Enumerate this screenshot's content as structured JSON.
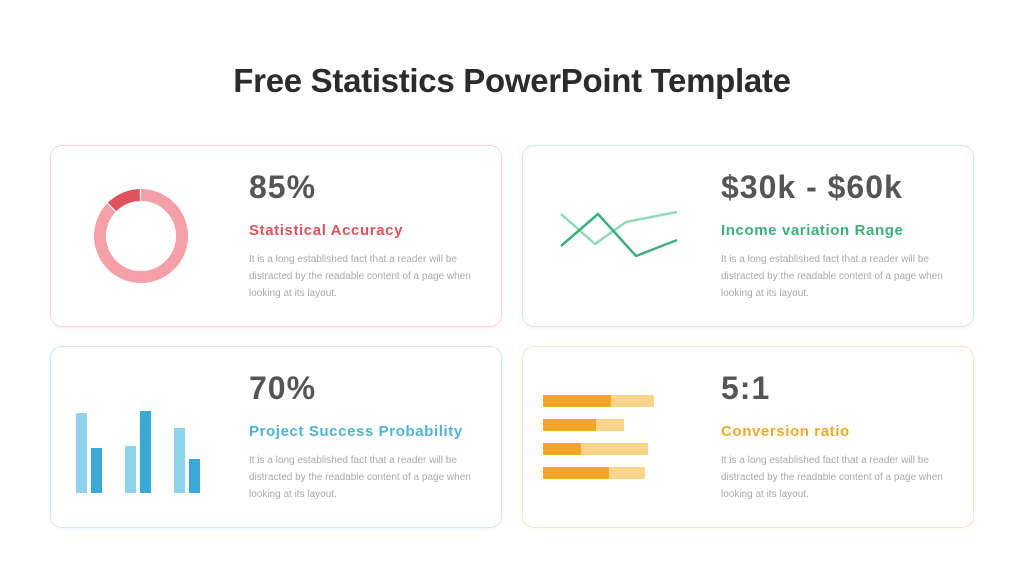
{
  "slide": {
    "title": "Free Statistics PowerPoint Template"
  },
  "colors": {
    "red": "#e0525c",
    "pink": "#f4a0a6",
    "green": "#3fae7c",
    "light_green": "#8fd9bb",
    "blue": "#3aa9d8",
    "light_blue": "#8fd3ea",
    "orange": "#f5a623",
    "light_orange": "#fcd48a"
  },
  "cards": [
    {
      "value": "85%",
      "label": "Statistical Accuracy",
      "description": "It is a long established fact that a reader  will be distracted  by the readable content of a page when looking at its layout.",
      "icon": "donut-chart-icon"
    },
    {
      "value": "$30k - $60k",
      "label": "Income variation Range",
      "description": "It is a long established fact that a reader  will be distracted  by the readable content of a page when looking at its layout.",
      "icon": "line-chart-icon"
    },
    {
      "value": "70%",
      "label": "Project Success Probability",
      "description": "It is a long established fact that a reader  will be distracted  by the readable content of a page when looking at its layout.",
      "icon": "bar-chart-icon"
    },
    {
      "value": "5:1",
      "label": "Conversion ratio",
      "description": "It is a long established fact that a reader  will be distracted  by the readable content of a page when looking at its layout.",
      "icon": "horizontal-bar-chart-icon"
    }
  ]
}
